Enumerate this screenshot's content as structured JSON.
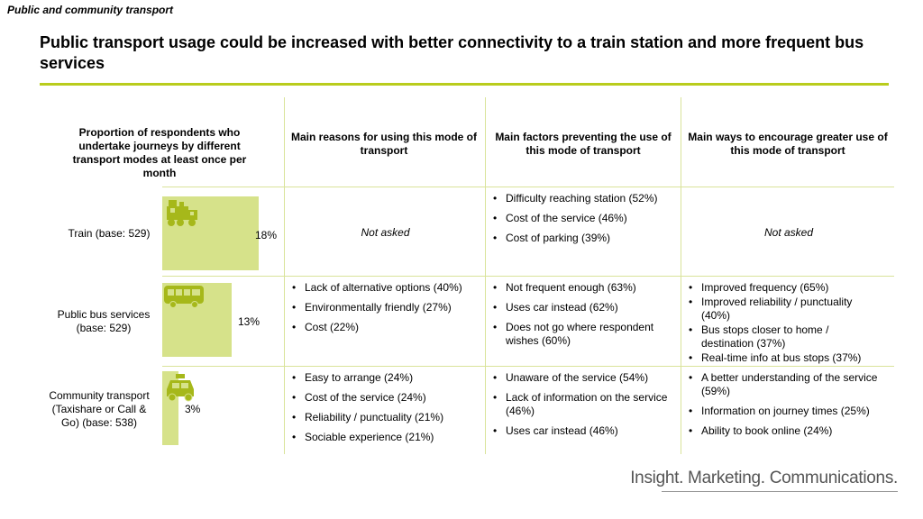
{
  "header": {
    "section_label": "Public and community transport",
    "title": "Public transport usage could be increased with better connectivity to a train station and more frequent bus services"
  },
  "columns": {
    "proportion": "Proportion of respondents who undertake journeys by different transport modes at least once per month",
    "reasons": "Main reasons for using this mode of transport",
    "factors": "Main factors preventing the use of this mode of transport",
    "ways": "Main ways to encourage greater use of this mode of transport"
  },
  "rows": [
    {
      "label": "Train (base: 529)",
      "icon": "train-icon",
      "value_label": "18%",
      "reasons_note": "Not asked",
      "reasons": [],
      "factors": [
        "Difficulty reaching station (52%)",
        "Cost of the service (46%)",
        "Cost of parking (39%)"
      ],
      "ways_note": "Not asked",
      "ways": []
    },
    {
      "label": "Public bus services (base: 529)",
      "icon": "bus-icon",
      "value_label": "13%",
      "reasons_note": "",
      "reasons": [
        "Lack of alternative options (40%)",
        "Environmentally friendly (27%)",
        "Cost (22%)"
      ],
      "factors": [
        "Not frequent enough (63%)",
        "Uses car instead (62%)",
        "Does not go where respondent wishes (60%)"
      ],
      "ways_note": "",
      "ways": [
        "Improved frequency (65%)",
        "Improved reliability / punctuality (40%)",
        "Bus stops closer to home / destination (37%)",
        "Real-time info at bus stops (37%)"
      ]
    },
    {
      "label": "Community transport (Taxishare or Call & Go) (base: 538)",
      "icon": "taxi-icon",
      "value_label": "3%",
      "reasons_note": "",
      "reasons": [
        "Easy to arrange (24%)",
        "Cost of the service (24%)",
        "Reliability / punctuality (21%)",
        "Sociable experience (21%)"
      ],
      "factors": [
        "Unaware of the service (54%)",
        "Lack of information on the service (46%)",
        "Uses car instead (46%)"
      ],
      "ways_note": "",
      "ways": [
        "A better understanding of the service (59%)",
        "Information on journey times (25%)",
        "Ability to book online (24%)"
      ]
    }
  ],
  "chart_data": {
    "type": "bar",
    "categories": [
      "Train (base: 529)",
      "Public bus services (base: 529)",
      "Community transport (Taxishare or Call & Go) (base: 538)"
    ],
    "values": [
      18,
      13,
      3
    ],
    "unit": "%"
  },
  "footer": {
    "brand": "Insight. Marketing. Communications."
  },
  "colors": {
    "accent": "#b9cc1c",
    "bar": "#d6e28a",
    "icon": "#a6b81a",
    "grid": "#d9e39a"
  }
}
